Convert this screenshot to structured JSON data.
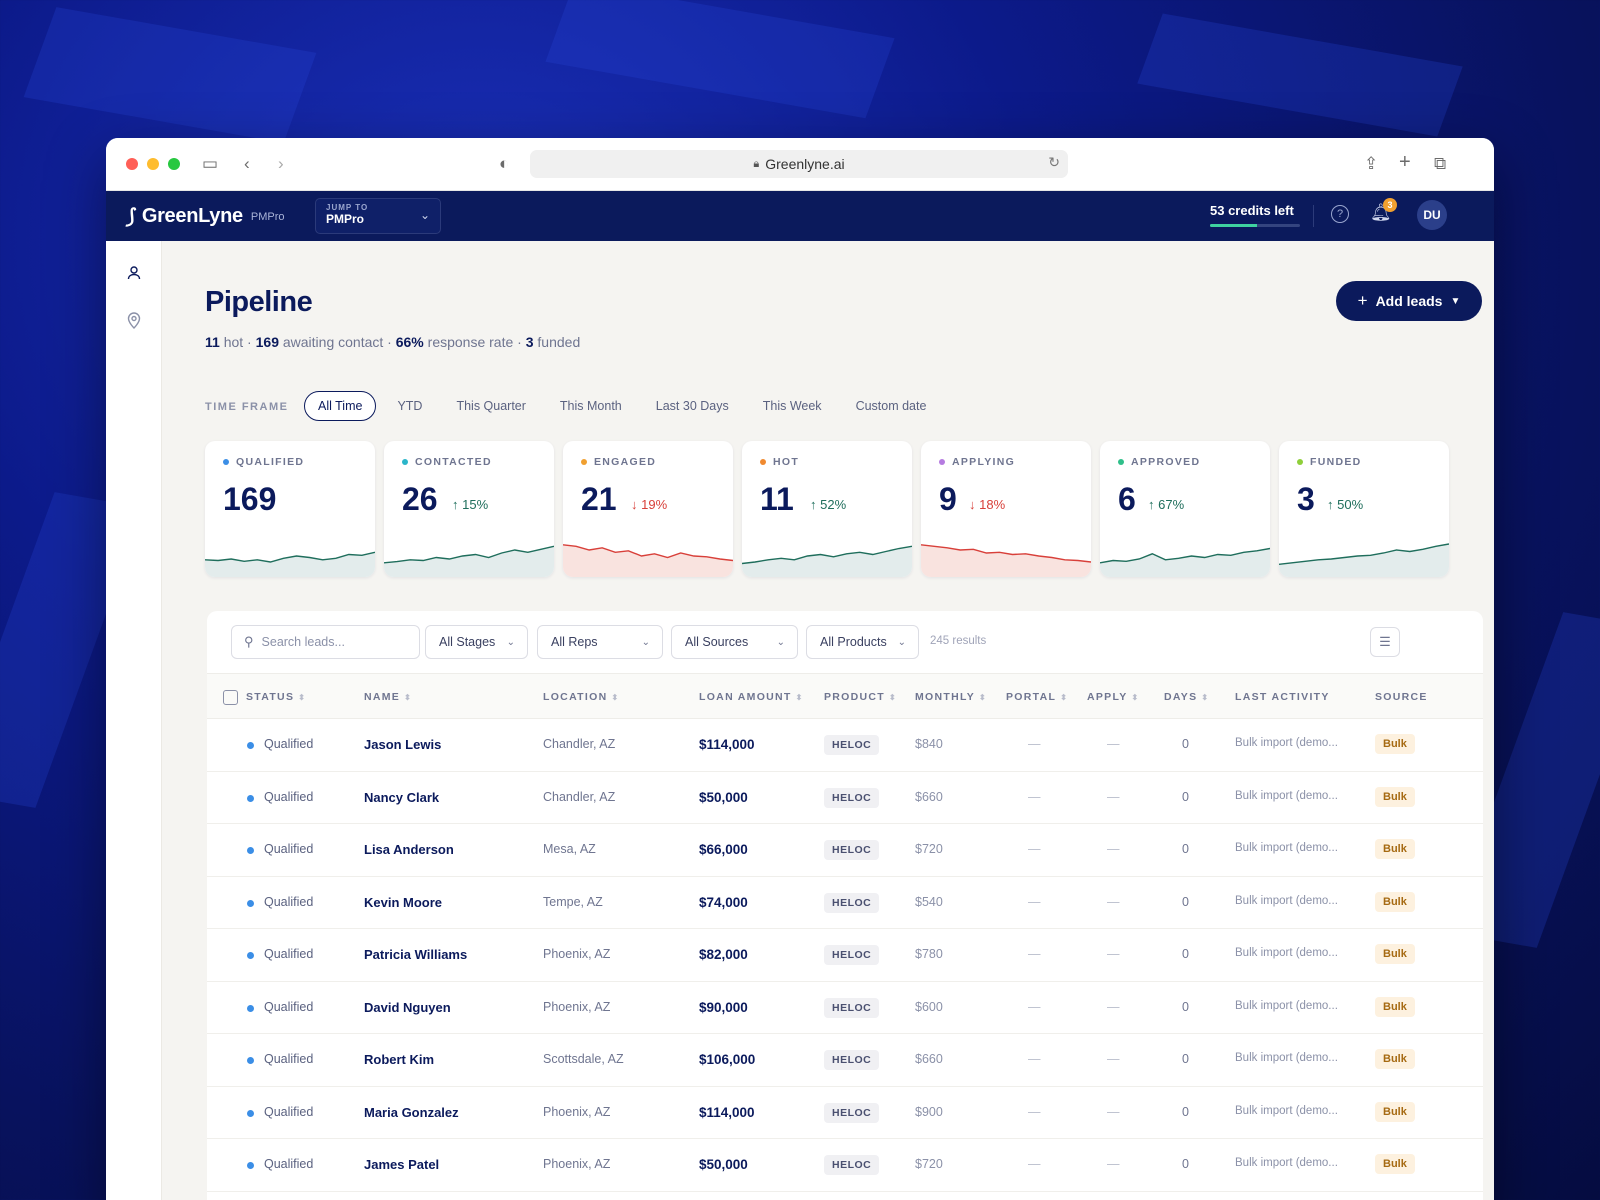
{
  "browser": {
    "url": "Greenlyne.ai",
    "icons": [
      "sidebar-icon",
      "back-icon",
      "forward-icon",
      "shield-icon",
      "lock-icon",
      "reload-icon",
      "share-icon",
      "new-tab-icon",
      "tabs-icon"
    ]
  },
  "header": {
    "logo": "GreenLyne",
    "logo_sub": "PMPro",
    "jump_label": "JUMP TO",
    "jump_value": "PMPro",
    "credits": "53 credits left",
    "credits_fraction": 0.52,
    "notification_count": "3",
    "avatar": "DU"
  },
  "page": {
    "title": "Pipeline",
    "summary": {
      "hot_count": "11",
      "hot_label": "hot",
      "awaiting_count": "169",
      "awaiting_label": "awaiting contact",
      "response_rate": "66%",
      "response_label": "response rate",
      "funded_count": "3",
      "funded_label": "funded",
      "sep": " · "
    },
    "add_leads": "Add leads"
  },
  "timeframe": {
    "label": "TIME FRAME",
    "tabs": [
      "All Time",
      "YTD",
      "This Quarter",
      "This Month",
      "Last 30 Days",
      "This Week",
      "Custom date"
    ],
    "active": 0
  },
  "cards": [
    {
      "label": "QUALIFIED",
      "value": "169",
      "delta": "",
      "dir": "none",
      "dot": "#3b8ee6"
    },
    {
      "label": "CONTACTED",
      "value": "26",
      "delta": "↑ 15%",
      "dir": "up",
      "dot": "#2bb5c9"
    },
    {
      "label": "ENGAGED",
      "value": "21",
      "delta": "↓ 19%",
      "dir": "down",
      "dot": "#f0a030"
    },
    {
      "label": "HOT",
      "value": "11",
      "delta": "↑ 52%",
      "dir": "up",
      "dot": "#f08a30"
    },
    {
      "label": "APPLYING",
      "value": "9",
      "delta": "↓ 18%",
      "dir": "down",
      "dot": "#b57be0"
    },
    {
      "label": "APPROVED",
      "value": "6",
      "delta": "↑ 67%",
      "dir": "up",
      "dot": "#2fbf8a"
    },
    {
      "label": "FUNDED",
      "value": "3",
      "delta": "↑ 50%",
      "dir": "up",
      "dot": "#8fcf3a"
    }
  ],
  "colors": {
    "brand": "#0b1a5c",
    "up": "#1f6e5c",
    "down": "#d8403a",
    "spark_up_fill": "#e3ecec",
    "spark_down_fill": "#f9e3df"
  },
  "filters": {
    "search_placeholder": "Search leads...",
    "stages": "All Stages",
    "reps": "All Reps",
    "sources": "All Sources",
    "products": "All Products",
    "results": "245 results"
  },
  "table": {
    "columns": [
      "STATUS",
      "NAME",
      "LOCATION",
      "LOAN AMOUNT",
      "PRODUCT",
      "MONTHLY",
      "PORTAL",
      "APPLY",
      "DAYS",
      "LAST ACTIVITY",
      "SOURCE"
    ],
    "rows": [
      {
        "status": "Qualified",
        "name": "Jason Lewis",
        "location": "Chandler, AZ",
        "amount": "$114,000",
        "product": "HELOC",
        "monthly": "$840",
        "portal": "—",
        "apply": "—",
        "days": "0",
        "last": "Bulk import (demo...",
        "source": "Bulk"
      },
      {
        "status": "Qualified",
        "name": "Nancy Clark",
        "location": "Chandler, AZ",
        "amount": "$50,000",
        "product": "HELOC",
        "monthly": "$660",
        "portal": "—",
        "apply": "—",
        "days": "0",
        "last": "Bulk import (demo...",
        "source": "Bulk"
      },
      {
        "status": "Qualified",
        "name": "Lisa Anderson",
        "location": "Mesa, AZ",
        "amount": "$66,000",
        "product": "HELOC",
        "monthly": "$720",
        "portal": "—",
        "apply": "—",
        "days": "0",
        "last": "Bulk import (demo...",
        "source": "Bulk"
      },
      {
        "status": "Qualified",
        "name": "Kevin Moore",
        "location": "Tempe, AZ",
        "amount": "$74,000",
        "product": "HELOC",
        "monthly": "$540",
        "portal": "—",
        "apply": "—",
        "days": "0",
        "last": "Bulk import (demo...",
        "source": "Bulk"
      },
      {
        "status": "Qualified",
        "name": "Patricia Williams",
        "location": "Phoenix, AZ",
        "amount": "$82,000",
        "product": "HELOC",
        "monthly": "$780",
        "portal": "—",
        "apply": "—",
        "days": "0",
        "last": "Bulk import (demo...",
        "source": "Bulk"
      },
      {
        "status": "Qualified",
        "name": "David Nguyen",
        "location": "Phoenix, AZ",
        "amount": "$90,000",
        "product": "HELOC",
        "monthly": "$600",
        "portal": "—",
        "apply": "—",
        "days": "0",
        "last": "Bulk import (demo...",
        "source": "Bulk"
      },
      {
        "status": "Qualified",
        "name": "Robert Kim",
        "location": "Scottsdale, AZ",
        "amount": "$106,000",
        "product": "HELOC",
        "monthly": "$660",
        "portal": "—",
        "apply": "—",
        "days": "0",
        "last": "Bulk import (demo...",
        "source": "Bulk"
      },
      {
        "status": "Qualified",
        "name": "Maria Gonzalez",
        "location": "Phoenix, AZ",
        "amount": "$114,000",
        "product": "HELOC",
        "monthly": "$900",
        "portal": "—",
        "apply": "—",
        "days": "0",
        "last": "Bulk import (demo...",
        "source": "Bulk"
      },
      {
        "status": "Qualified",
        "name": "James Patel",
        "location": "Phoenix, AZ",
        "amount": "$50,000",
        "product": "HELOC",
        "monthly": "$720",
        "portal": "—",
        "apply": "—",
        "days": "0",
        "last": "Bulk import (demo...",
        "source": "Bulk"
      }
    ]
  }
}
